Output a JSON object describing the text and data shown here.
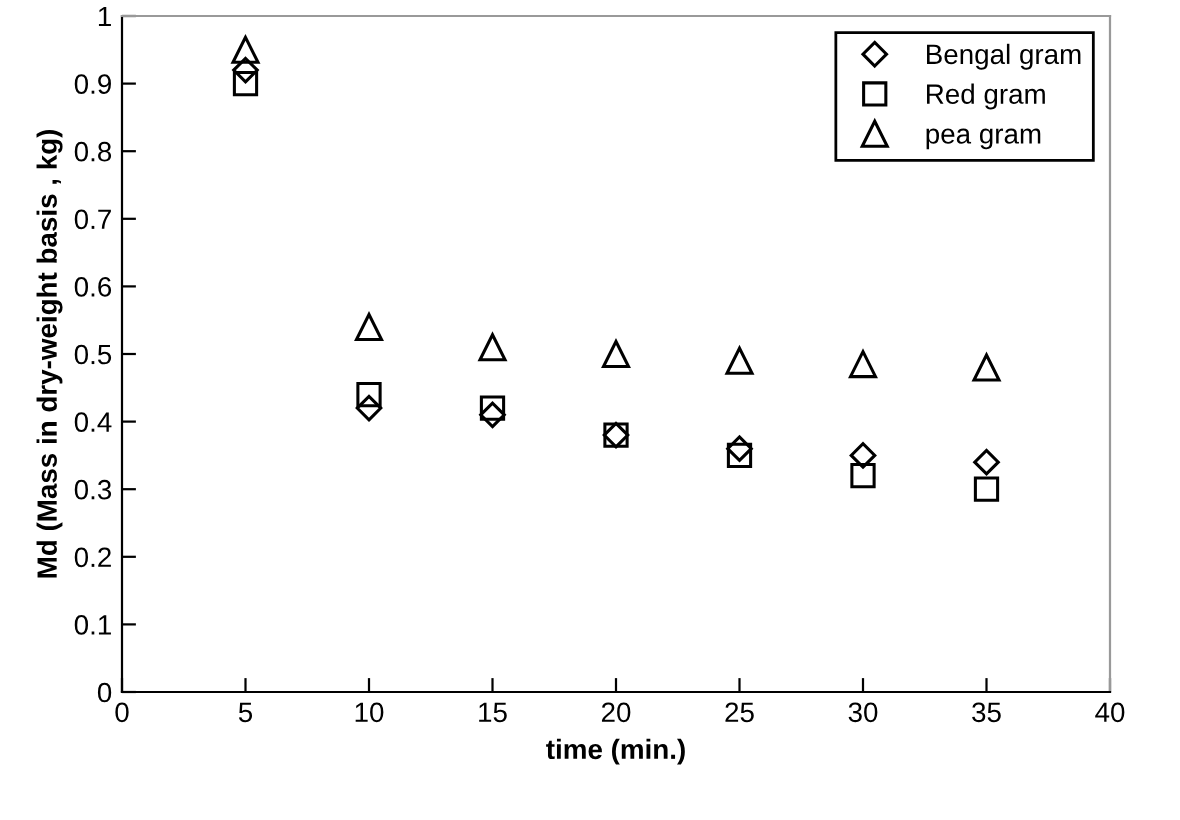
{
  "chart_data": {
    "type": "scatter",
    "xlabel": "time (min.)",
    "ylabel": "Md (Mass in dry-weight basis , kg)",
    "x": [
      5,
      10,
      15,
      20,
      25,
      30,
      35
    ],
    "series": [
      {
        "name": "Bengal gram",
        "color": "#000000",
        "marker": "diamond",
        "values": [
          0.92,
          0.42,
          0.41,
          0.38,
          0.36,
          0.35,
          0.34
        ]
      },
      {
        "name": "Red gram",
        "color": "#000000",
        "marker": "square",
        "values": [
          0.9,
          0.44,
          0.42,
          0.38,
          0.35,
          0.32,
          0.3
        ]
      },
      {
        "name": "pea gram",
        "color": "#000000",
        "marker": "triangle",
        "values": [
          0.95,
          0.54,
          0.51,
          0.5,
          0.49,
          0.485,
          0.48
        ]
      }
    ],
    "xlim": [
      0,
      40
    ],
    "xticks": [
      0,
      5,
      10,
      15,
      20,
      25,
      30,
      35,
      40
    ],
    "ylim": [
      0,
      1
    ],
    "yticks": [
      0,
      0.1,
      0.2,
      0.3,
      0.4,
      0.5,
      0.6,
      0.7,
      0.8,
      0.9,
      1
    ],
    "grid": false,
    "legend": "top right"
  }
}
